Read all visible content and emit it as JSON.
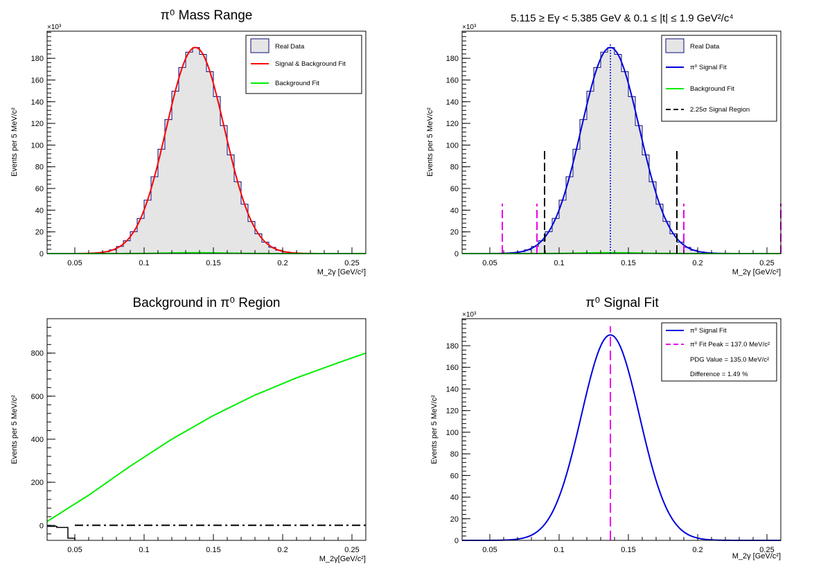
{
  "chart_data": [
    {
      "type": "histogram",
      "title": "π⁰ Mass Range",
      "xlabel": "M_2γ [GeV/c²]",
      "ylabel": "Events per 5 MeV/c²",
      "y_multiplier": "×10³",
      "xlim": [
        0.03,
        0.26
      ],
      "ylim": [
        0,
        205
      ],
      "xticks": [
        "0.05",
        "0.1",
        "0.15",
        "0.2",
        "0.25"
      ],
      "yticks": [
        "0",
        "20",
        "40",
        "60",
        "80",
        "100",
        "120",
        "140",
        "160",
        "180"
      ],
      "legend": [
        "Real Data",
        "Signal & Background Fit",
        "Background Fit"
      ],
      "series": [
        {
          "name": "Real Data",
          "kind": "hist",
          "mean": 0.137,
          "sigma": 0.021,
          "amplitude": 190
        },
        {
          "name": "Signal & Background Fit",
          "kind": "curve",
          "color": "#ff0000",
          "mean": 0.137,
          "sigma": 0.021,
          "amplitude": 190
        },
        {
          "name": "Background Fit",
          "kind": "curve",
          "color": "#00ee00",
          "mean": 0.137,
          "sigma": 0.021,
          "amplitude": 0.8
        }
      ]
    },
    {
      "type": "histogram",
      "title": "5.115 ≥ Eγ < 5.385 GeV  &  0.1 ≤ |t| ≤ 1.9 GeV²/c⁴",
      "xlabel": "M_2γ [GeV/c²]",
      "ylabel": "Events per 5 MeV/c²",
      "y_multiplier": "×10³",
      "xlim": [
        0.03,
        0.26
      ],
      "ylim": [
        0,
        205
      ],
      "xticks": [
        "0.05",
        "0.1",
        "0.15",
        "0.2",
        "0.25"
      ],
      "yticks": [
        "0",
        "20",
        "40",
        "60",
        "80",
        "100",
        "120",
        "140",
        "160",
        "180"
      ],
      "legend": [
        "Real Data",
        "π⁰ Signal Fit",
        "Background Fit",
        "2.25σ Signal Region"
      ],
      "series": [
        {
          "name": "Real Data",
          "kind": "hist",
          "mean": 0.137,
          "sigma": 0.021,
          "amplitude": 190
        },
        {
          "name": "π⁰ Signal Fit",
          "kind": "curve",
          "color": "#0000dd",
          "mean": 0.137,
          "sigma": 0.021,
          "amplitude": 190
        },
        {
          "name": "Background Fit",
          "kind": "curve",
          "color": "#00ee00",
          "mean": 0.137,
          "sigma": 0.021,
          "amplitude": 0.8
        }
      ],
      "peak_line": 0.137,
      "signal_region_lines": [
        0.0895,
        0.185
      ],
      "sideband_lines": [
        0.059,
        0.084,
        0.19,
        0.26
      ],
      "signal_line_top": 96,
      "sideband_line_top": 46
    },
    {
      "type": "line",
      "title": "Background in π⁰ Region",
      "xlabel": "M_2γ[GeV/c²]",
      "ylabel": "Events per 5 MeV/c²",
      "xlim": [
        0.03,
        0.26
      ],
      "ylim": [
        -70,
        960
      ],
      "xticks": [
        "0.05",
        "0.1",
        "0.15",
        "0.2",
        "0.25"
      ],
      "yticks": [
        "0",
        "200",
        "400",
        "600",
        "800"
      ],
      "series": [
        {
          "name": "Background",
          "color": "#00ee00",
          "x": [
            0.03,
            0.06,
            0.09,
            0.12,
            0.15,
            0.18,
            0.21,
            0.24,
            0.26
          ],
          "y": [
            18,
            140,
            275,
            400,
            510,
            605,
            685,
            755,
            800
          ]
        },
        {
          "name": "Zero Line",
          "color": "#000000",
          "x": [
            0.05,
            0.26
          ],
          "y": [
            0,
            0
          ]
        },
        {
          "name": "Data Steps",
          "color": "#000000",
          "x": [
            0.03,
            0.037,
            0.037,
            0.045,
            0.045,
            0.05,
            0.05
          ],
          "y": [
            -5,
            -5,
            -10,
            -10,
            -60,
            -60,
            -70
          ]
        }
      ]
    },
    {
      "type": "line",
      "title": "π⁰ Signal Fit",
      "xlabel": "M_2γ [GeV/c²]",
      "ylabel": "Events per 5 MeV/c²",
      "y_multiplier": "×10³",
      "xlim": [
        0.03,
        0.26
      ],
      "ylim": [
        0,
        205
      ],
      "xticks": [
        "0.05",
        "0.1",
        "0.15",
        "0.2",
        "0.25"
      ],
      "yticks": [
        "0",
        "20",
        "40",
        "60",
        "80",
        "100",
        "120",
        "140",
        "160",
        "180"
      ],
      "legend": [
        "π⁰ Signal Fit",
        "π⁰ Fit Peak = 137.0 MeV/c²",
        "PDG Value = 135.0 MeV/c²",
        "Difference = 1.49 %"
      ],
      "series": [
        {
          "name": "π⁰ Signal Fit",
          "kind": "curve",
          "color": "#0000dd",
          "mean": 0.137,
          "sigma": 0.021,
          "amplitude": 190
        }
      ],
      "fit_peak": 0.137,
      "fit_peak_mev": 137.0,
      "pdg_value_mev": 135.0,
      "difference_percent": 1.49
    }
  ]
}
